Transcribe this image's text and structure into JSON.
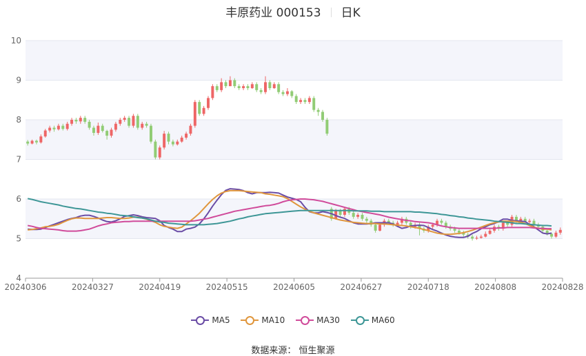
{
  "header": {
    "stock": "丰原药业 000153",
    "period": "日K"
  },
  "source": "数据来源： 恒生聚源",
  "colors": {
    "up": "#ee6666",
    "down": "#91cc75",
    "ma5": "#6a4ca5",
    "ma10": "#e0963c",
    "ma30": "#d04a9a",
    "ma60": "#3d9696"
  },
  "chart_data": {
    "type": "candlestick",
    "title": "丰原药业 000153",
    "ylim": [
      4,
      10
    ],
    "y_ticks": [
      4,
      5,
      6,
      7,
      8,
      9,
      10
    ],
    "x_tick_labels": [
      "20240306",
      "20240327",
      "20240419",
      "20240515",
      "20240605",
      "20240627",
      "20240718",
      "20240808",
      "20240828"
    ],
    "grid": true,
    "legend_position": "bottom",
    "series": [
      {
        "name": "MA5",
        "values": [
          5.24,
          5.23,
          5.23,
          5.24,
          5.28,
          5.32,
          5.36,
          5.4,
          5.44,
          5.48,
          5.51,
          5.53,
          5.57,
          5.59,
          5.59,
          5.56,
          5.52,
          5.47,
          5.43,
          5.42,
          5.45,
          5.5,
          5.56,
          5.58,
          5.6,
          5.58,
          5.55,
          5.53,
          5.52,
          5.51,
          5.45,
          5.33,
          5.28,
          5.24,
          5.18,
          5.18,
          5.24,
          5.26,
          5.29,
          5.37,
          5.5,
          5.65,
          5.82,
          5.97,
          6.11,
          6.22,
          6.26,
          6.25,
          6.24,
          6.21,
          6.16,
          6.13,
          6.16,
          6.16,
          6.16,
          6.17,
          6.16,
          6.15,
          6.1,
          6.05,
          6.02,
          5.99,
          5.93,
          5.79,
          5.68,
          5.65,
          5.65,
          5.68,
          5.66,
          5.63,
          5.58,
          5.54,
          5.51,
          5.45,
          5.4,
          5.37,
          5.37,
          5.37,
          5.38,
          5.4,
          5.4,
          5.4,
          5.4,
          5.37,
          5.31,
          5.26,
          5.28,
          5.32,
          5.33,
          5.34,
          5.33,
          5.28,
          5.23,
          5.19,
          5.14,
          5.09,
          5.06,
          5.04,
          5.03,
          5.03,
          5.06,
          5.13,
          5.18,
          5.25,
          5.3,
          5.35,
          5.38,
          5.43,
          5.49,
          5.49,
          5.46,
          5.45,
          5.44,
          5.43,
          5.36,
          5.3,
          5.22,
          5.14,
          5.12,
          5.14
        ]
      },
      {
        "name": "MA10",
        "values": [
          5.22,
          5.23,
          5.25,
          5.27,
          5.3,
          5.31,
          5.33,
          5.36,
          5.41,
          5.46,
          5.5,
          5.52,
          5.52,
          5.51,
          5.51,
          5.51,
          5.51,
          5.52,
          5.53,
          5.53,
          5.52,
          5.51,
          5.51,
          5.52,
          5.54,
          5.54,
          5.52,
          5.49,
          5.45,
          5.41,
          5.35,
          5.31,
          5.29,
          5.27,
          5.26,
          5.29,
          5.37,
          5.45,
          5.54,
          5.64,
          5.76,
          5.88,
          5.99,
          6.08,
          6.15,
          6.19,
          6.21,
          6.21,
          6.21,
          6.2,
          6.19,
          6.18,
          6.17,
          6.16,
          6.13,
          6.12,
          6.1,
          6.08,
          6.06,
          6.01,
          5.94,
          5.87,
          5.8,
          5.74,
          5.69,
          5.65,
          5.62,
          5.59,
          5.56,
          5.53,
          5.5,
          5.47,
          5.45,
          5.43,
          5.41,
          5.4,
          5.39,
          5.38,
          5.38,
          5.38,
          5.37,
          5.37,
          5.36,
          5.35,
          5.34,
          5.33,
          5.32,
          5.3,
          5.28,
          5.26,
          5.23,
          5.2,
          5.17,
          5.14,
          5.12,
          5.11,
          5.11,
          5.12,
          5.13,
          5.15,
          5.18,
          5.21,
          5.25,
          5.29,
          5.33,
          5.37,
          5.4,
          5.42,
          5.44,
          5.44,
          5.44,
          5.43,
          5.41,
          5.38,
          5.33,
          5.29,
          5.26,
          5.24,
          5.24,
          5.22
        ]
      },
      {
        "name": "MA30",
        "values": [
          5.33,
          5.31,
          5.28,
          5.26,
          5.25,
          5.24,
          5.23,
          5.22,
          5.2,
          5.19,
          5.19,
          5.19,
          5.2,
          5.22,
          5.24,
          5.28,
          5.32,
          5.35,
          5.37,
          5.4,
          5.41,
          5.42,
          5.43,
          5.43,
          5.44,
          5.44,
          5.44,
          5.44,
          5.44,
          5.44,
          5.44,
          5.44,
          5.44,
          5.44,
          5.44,
          5.44,
          5.44,
          5.44,
          5.45,
          5.47,
          5.49,
          5.51,
          5.54,
          5.57,
          5.6,
          5.63,
          5.66,
          5.69,
          5.71,
          5.73,
          5.75,
          5.77,
          5.79,
          5.81,
          5.83,
          5.84,
          5.86,
          5.89,
          5.93,
          5.96,
          5.98,
          5.99,
          6.0,
          6.0,
          5.99,
          5.98,
          5.96,
          5.94,
          5.91,
          5.88,
          5.85,
          5.82,
          5.79,
          5.76,
          5.73,
          5.7,
          5.68,
          5.66,
          5.64,
          5.62,
          5.6,
          5.57,
          5.54,
          5.52,
          5.5,
          5.48,
          5.46,
          5.45,
          5.43,
          5.42,
          5.41,
          5.4,
          5.38,
          5.35,
          5.32,
          5.3,
          5.28,
          5.27,
          5.26,
          5.26,
          5.26,
          5.26,
          5.26,
          5.26,
          5.26,
          5.26,
          5.26,
          5.27,
          5.27,
          5.28,
          5.28,
          5.28,
          5.28,
          5.28,
          5.28,
          5.27,
          5.26,
          5.26,
          5.25,
          5.25
        ]
      },
      {
        "name": "MA60",
        "values": [
          6.01,
          5.99,
          5.96,
          5.93,
          5.91,
          5.89,
          5.87,
          5.85,
          5.82,
          5.8,
          5.78,
          5.76,
          5.75,
          5.73,
          5.71,
          5.69,
          5.67,
          5.66,
          5.64,
          5.63,
          5.61,
          5.59,
          5.58,
          5.57,
          5.55,
          5.53,
          5.52,
          5.5,
          5.47,
          5.44,
          5.42,
          5.41,
          5.39,
          5.38,
          5.37,
          5.36,
          5.35,
          5.35,
          5.35,
          5.35,
          5.35,
          5.36,
          5.37,
          5.38,
          5.4,
          5.42,
          5.44,
          5.47,
          5.5,
          5.52,
          5.55,
          5.57,
          5.59,
          5.61,
          5.63,
          5.64,
          5.65,
          5.66,
          5.67,
          5.68,
          5.69,
          5.7,
          5.71,
          5.71,
          5.71,
          5.71,
          5.71,
          5.71,
          5.71,
          5.71,
          5.71,
          5.71,
          5.71,
          5.71,
          5.7,
          5.7,
          5.7,
          5.7,
          5.69,
          5.69,
          5.69,
          5.68,
          5.68,
          5.68,
          5.68,
          5.68,
          5.68,
          5.68,
          5.67,
          5.67,
          5.66,
          5.65,
          5.64,
          5.63,
          5.61,
          5.6,
          5.58,
          5.57,
          5.55,
          5.54,
          5.52,
          5.51,
          5.49,
          5.48,
          5.47,
          5.46,
          5.44,
          5.43,
          5.42,
          5.41,
          5.4,
          5.38,
          5.38,
          5.37,
          5.36,
          5.35,
          5.34,
          5.33,
          5.33,
          5.32
        ]
      }
    ],
    "ohlc": [
      [
        7.45,
        7.4,
        7.49,
        7.35
      ],
      [
        7.4,
        7.47,
        7.5,
        7.38
      ],
      [
        7.47,
        7.43,
        7.5,
        7.38
      ],
      [
        7.43,
        7.58,
        7.63,
        7.4
      ],
      [
        7.58,
        7.73,
        7.77,
        7.55
      ],
      [
        7.73,
        7.8,
        7.85,
        7.68
      ],
      [
        7.8,
        7.76,
        7.85,
        7.7
      ],
      [
        7.76,
        7.85,
        7.9,
        7.73
      ],
      [
        7.85,
        7.77,
        7.9,
        7.73
      ],
      [
        7.77,
        7.9,
        7.95,
        7.73
      ],
      [
        7.9,
        8.0,
        8.05,
        7.85
      ],
      [
        8.0,
        7.96,
        8.05,
        7.9
      ],
      [
        7.96,
        8.05,
        8.1,
        7.9
      ],
      [
        8.05,
        7.95,
        8.1,
        7.9
      ],
      [
        7.95,
        7.8,
        8.0,
        7.75
      ],
      [
        7.8,
        7.67,
        7.85,
        7.6
      ],
      [
        7.67,
        7.85,
        7.93,
        7.62
      ],
      [
        7.85,
        7.72,
        7.9,
        7.68
      ],
      [
        7.72,
        7.6,
        7.75,
        7.5
      ],
      [
        7.6,
        7.75,
        7.8,
        7.55
      ],
      [
        7.75,
        7.9,
        7.95,
        7.7
      ],
      [
        7.9,
        8.0,
        8.05,
        7.85
      ],
      [
        8.0,
        8.05,
        8.1,
        7.95
      ],
      [
        8.05,
        7.85,
        8.1,
        7.8
      ],
      [
        7.85,
        8.1,
        8.15,
        7.8
      ],
      [
        8.1,
        7.8,
        8.15,
        7.75
      ],
      [
        7.8,
        7.9,
        7.95,
        7.75
      ],
      [
        7.9,
        7.85,
        7.95,
        7.8
      ],
      [
        7.85,
        7.45,
        7.9,
        7.4
      ],
      [
        7.45,
        7.05,
        7.5,
        7.0
      ],
      [
        7.05,
        7.3,
        7.35,
        7.0
      ],
      [
        7.3,
        7.65,
        7.72,
        7.25
      ],
      [
        7.65,
        7.45,
        7.7,
        7.38
      ],
      [
        7.45,
        7.38,
        7.5,
        7.33
      ],
      [
        7.38,
        7.45,
        7.5,
        7.35
      ],
      [
        7.45,
        7.55,
        7.6,
        7.42
      ],
      [
        7.55,
        7.65,
        7.7,
        7.5
      ],
      [
        7.65,
        7.85,
        7.9,
        7.6
      ],
      [
        7.85,
        8.45,
        8.5,
        7.8
      ],
      [
        8.45,
        8.15,
        8.5,
        8.1
      ],
      [
        8.15,
        8.3,
        8.35,
        8.1
      ],
      [
        8.3,
        8.55,
        8.6,
        8.25
      ],
      [
        8.55,
        8.85,
        8.9,
        8.5
      ],
      [
        8.85,
        8.75,
        8.9,
        8.7
      ],
      [
        8.75,
        8.95,
        9.05,
        8.7
      ],
      [
        8.95,
        8.85,
        9.0,
        8.8
      ],
      [
        8.85,
        9.0,
        9.1,
        8.85
      ],
      [
        9.0,
        8.85,
        9.05,
        8.8
      ],
      [
        8.85,
        8.8,
        8.9,
        8.75
      ],
      [
        8.8,
        8.85,
        8.9,
        8.75
      ],
      [
        8.85,
        8.8,
        8.9,
        8.75
      ],
      [
        8.8,
        8.9,
        8.95,
        8.78
      ],
      [
        8.9,
        8.75,
        8.95,
        8.7
      ],
      [
        8.75,
        8.7,
        8.8,
        8.65
      ],
      [
        8.7,
        8.95,
        9.1,
        8.65
      ],
      [
        8.95,
        8.8,
        9.0,
        8.75
      ],
      [
        8.8,
        8.9,
        8.95,
        8.78
      ],
      [
        8.9,
        8.7,
        8.95,
        8.65
      ],
      [
        8.7,
        8.65,
        8.75,
        8.6
      ],
      [
        8.65,
        8.72,
        8.8,
        8.6
      ],
      [
        8.72,
        8.6,
        8.75,
        8.55
      ],
      [
        8.6,
        8.45,
        8.65,
        8.4
      ],
      [
        8.45,
        8.5,
        8.55,
        8.4
      ],
      [
        8.5,
        8.45,
        8.55,
        8.4
      ],
      [
        8.45,
        8.55,
        8.6,
        8.4
      ],
      [
        8.55,
        8.25,
        8.6,
        8.2
      ],
      [
        8.25,
        8.2,
        8.3,
        8.1
      ],
      [
        8.2,
        8.0,
        8.25,
        7.95
      ],
      [
        8.0,
        7.65,
        8.05,
        7.6
      ],
      [
        5.75,
        5.5,
        5.8,
        5.45
      ],
      [
        5.5,
        5.7,
        5.75,
        5.48
      ],
      [
        5.7,
        5.6,
        5.75,
        5.55
      ],
      [
        5.6,
        5.75,
        5.8,
        5.55
      ],
      [
        5.75,
        5.65,
        5.8,
        5.6
      ],
      [
        5.65,
        5.55,
        5.7,
        5.5
      ],
      [
        5.55,
        5.6,
        5.65,
        5.5
      ],
      [
        5.6,
        5.5,
        5.65,
        5.45
      ],
      [
        5.5,
        5.45,
        5.55,
        5.4
      ],
      [
        5.45,
        5.35,
        5.5,
        5.3
      ],
      [
        5.35,
        5.2,
        5.4,
        5.15
      ],
      [
        5.2,
        5.35,
        5.4,
        5.18
      ],
      [
        5.35,
        5.45,
        5.5,
        5.3
      ],
      [
        5.45,
        5.4,
        5.5,
        5.35
      ],
      [
        5.4,
        5.35,
        5.45,
        5.3
      ],
      [
        5.35,
        5.4,
        5.45,
        5.3
      ],
      [
        5.4,
        5.5,
        5.55,
        5.35
      ],
      [
        5.5,
        5.4,
        5.55,
        5.35
      ],
      [
        5.4,
        5.3,
        5.45,
        5.25
      ],
      [
        5.3,
        5.35,
        5.4,
        5.25
      ],
      [
        5.35,
        5.25,
        5.4,
        5.08
      ],
      [
        5.25,
        5.2,
        5.3,
        5.15
      ],
      [
        5.2,
        5.3,
        5.35,
        5.15
      ],
      [
        5.3,
        5.35,
        5.4,
        5.25
      ],
      [
        5.35,
        5.45,
        5.5,
        5.3
      ],
      [
        5.45,
        5.4,
        5.5,
        5.35
      ],
      [
        5.4,
        5.3,
        5.45,
        5.25
      ],
      [
        5.3,
        5.25,
        5.35,
        5.2
      ],
      [
        5.25,
        5.2,
        5.3,
        5.15
      ],
      [
        5.2,
        5.15,
        5.25,
        5.1
      ],
      [
        5.15,
        5.1,
        5.2,
        5.05
      ],
      [
        5.1,
        5.05,
        5.15,
        5.0
      ],
      [
        5.05,
        5.0,
        5.1,
        4.95
      ],
      [
        5.0,
        5.02,
        5.07,
        4.97
      ],
      [
        5.02,
        5.05,
        5.1,
        5.0
      ],
      [
        5.05,
        5.12,
        5.18,
        5.03
      ],
      [
        5.12,
        5.2,
        5.25,
        5.1
      ],
      [
        5.2,
        5.3,
        5.35,
        5.15
      ],
      [
        5.3,
        5.25,
        5.35,
        5.2
      ],
      [
        5.25,
        5.4,
        5.45,
        5.2
      ],
      [
        5.4,
        5.35,
        5.45,
        5.3
      ],
      [
        5.35,
        5.55,
        5.6,
        5.3
      ],
      [
        5.55,
        5.45,
        5.6,
        5.4
      ],
      [
        5.45,
        5.5,
        5.55,
        5.4
      ],
      [
        5.5,
        5.42,
        5.55,
        5.38
      ],
      [
        5.42,
        5.45,
        5.5,
        5.38
      ],
      [
        5.45,
        5.35,
        5.5,
        5.3
      ],
      [
        5.35,
        5.3,
        5.4,
        5.25
      ],
      [
        5.3,
        5.2,
        5.35,
        5.15
      ],
      [
        5.2,
        5.12,
        5.25,
        5.08
      ],
      [
        5.12,
        5.05,
        5.15,
        5.0
      ],
      [
        5.05,
        5.15,
        5.2,
        5.02
      ],
      [
        5.15,
        5.22,
        5.28,
        5.1
      ]
    ]
  }
}
